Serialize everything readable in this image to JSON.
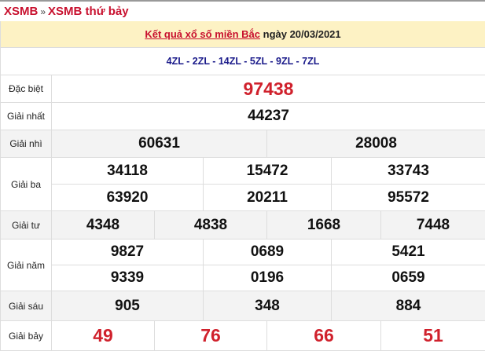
{
  "breadcrumb": {
    "home": "XSMB",
    "separator": "»",
    "current": "XSMB thứ bảy"
  },
  "header": {
    "link": "Kết quả xổ số miền Bắc",
    "date_text": "ngày 20/03/2021"
  },
  "codes": "4ZL - 2ZL - 14ZL - 5ZL - 9ZL - 7ZL",
  "prizes": {
    "special": {
      "label": "Đặc biệt",
      "values": [
        "97438"
      ]
    },
    "first": {
      "label": "Giải nhất",
      "values": [
        "44237"
      ]
    },
    "second": {
      "label": "Giải nhì",
      "values": [
        "60631",
        "28008"
      ]
    },
    "third": {
      "label": "Giải ba",
      "values": [
        "34118",
        "15472",
        "33743",
        "63920",
        "20211",
        "95572"
      ]
    },
    "fourth": {
      "label": "Giải tư",
      "values": [
        "4348",
        "4838",
        "1668",
        "7448"
      ]
    },
    "fifth": {
      "label": "Giải năm",
      "values": [
        "9827",
        "0689",
        "5421",
        "9339",
        "0196",
        "0659"
      ]
    },
    "sixth": {
      "label": "Giải sáu",
      "values": [
        "905",
        "348",
        "884"
      ]
    },
    "seventh": {
      "label": "Giải bảy",
      "values": [
        "49",
        "76",
        "66",
        "51"
      ]
    }
  },
  "colors": {
    "accent": "#c8102e",
    "header_bg": "#fdf2c4",
    "codes": "#1a1a8a",
    "alt_row": "#f3f3f3"
  }
}
